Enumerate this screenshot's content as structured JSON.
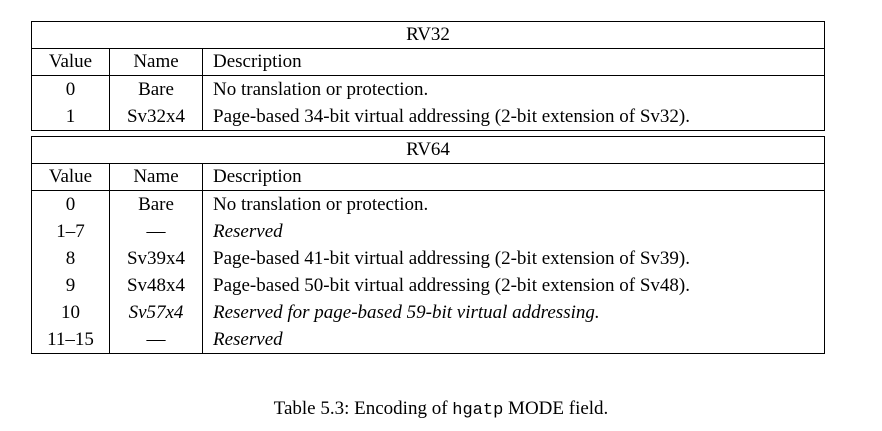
{
  "rv32": {
    "title": "RV32",
    "headers": {
      "value": "Value",
      "name": "Name",
      "description": "Description"
    },
    "rows": [
      {
        "value": "0",
        "name": "Bare",
        "description": "No translation or protection."
      },
      {
        "value": "1",
        "name": "Sv32x4",
        "description": "Page-based 34-bit virtual addressing (2-bit extension of Sv32)."
      }
    ]
  },
  "rv64": {
    "title": "RV64",
    "headers": {
      "value": "Value",
      "name": "Name",
      "description": "Description"
    },
    "rows": [
      {
        "value": "0",
        "name": "Bare",
        "description": "No translation or protection."
      },
      {
        "value": "1–7",
        "name": "—",
        "description": "Reserved"
      },
      {
        "value": "8",
        "name": "Sv39x4",
        "description": "Page-based 41-bit virtual addressing (2-bit extension of Sv39)."
      },
      {
        "value": "9",
        "name": "Sv48x4",
        "description": "Page-based 50-bit virtual addressing (2-bit extension of Sv48)."
      },
      {
        "value": "10",
        "name": "Sv57x4",
        "description": "Reserved for page-based 59-bit virtual addressing."
      },
      {
        "value": "11–15",
        "name": "—",
        "description": "Reserved"
      }
    ]
  },
  "caption": {
    "prefix": "Table 5.3: Encoding of ",
    "code": "hgatp",
    "suffix": " MODE field."
  }
}
